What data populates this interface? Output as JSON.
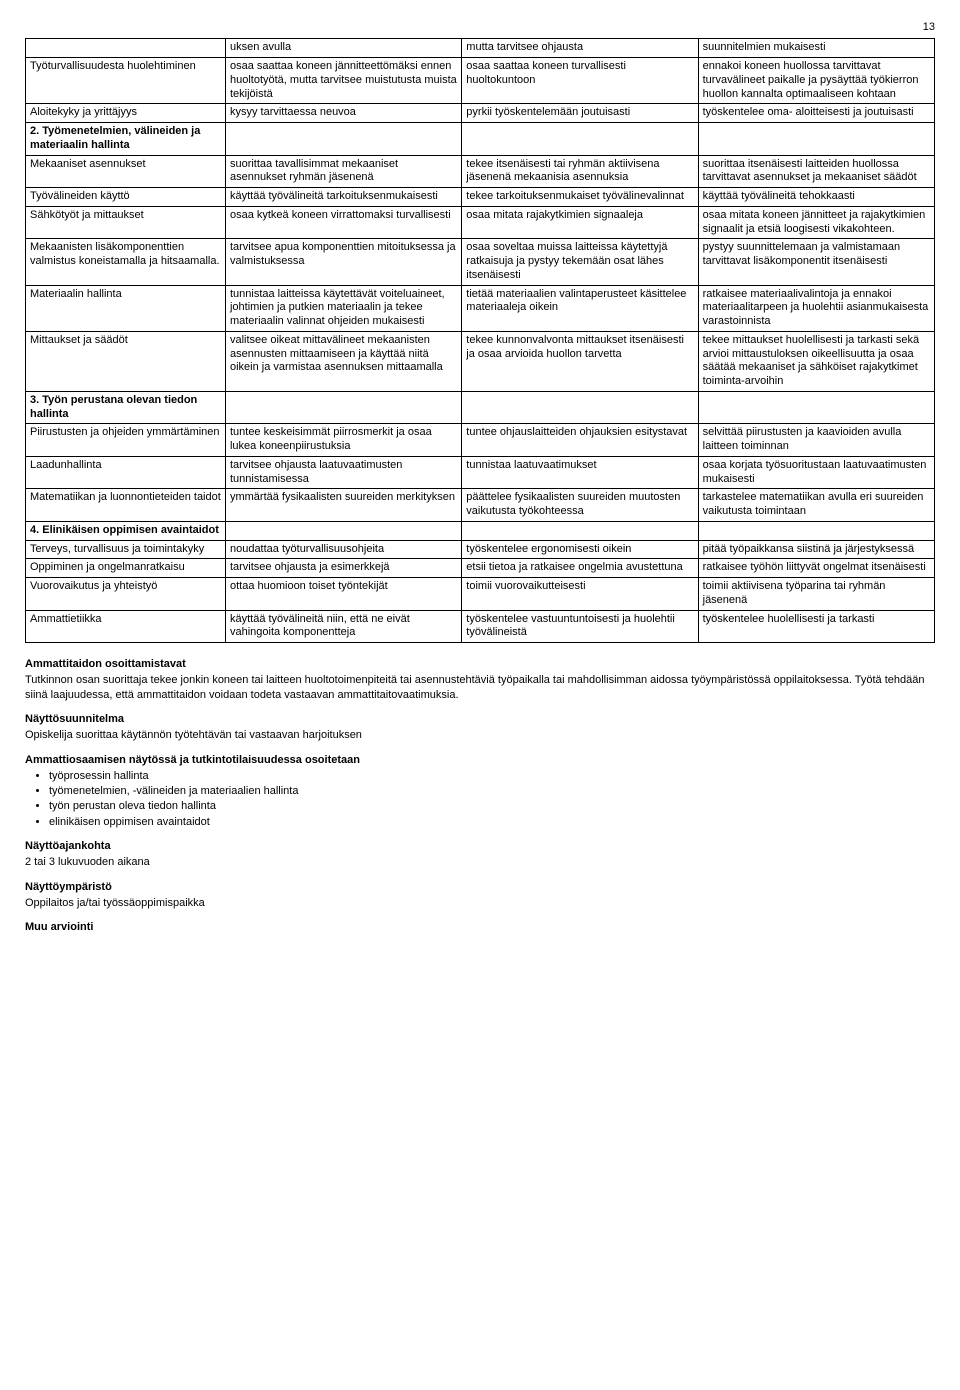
{
  "page_number": "13",
  "table": {
    "rows": [
      {
        "c1": "",
        "c2": "uksen avulla",
        "c3": "mutta tarvitsee ohjausta",
        "c4": "suunnitelmien mukaisesti"
      },
      {
        "c1": "Työturvallisuudesta huolehtiminen",
        "c2": "osaa saattaa koneen jännitteettömäksi ennen huoltotyötä, mutta tarvitsee muistutusta muista tekijöistä",
        "c3": "osaa saattaa koneen turvallisesti huoltokuntoon",
        "c4": "ennakoi koneen huollossa tarvittavat turvavälineet paikalle ja pysäyttää työkierron huollon kannalta optimaaliseen kohtaan"
      },
      {
        "c1": "Aloitekyky ja yrittäjyys",
        "c2": "kysyy tarvittaessa neuvoa",
        "c3": "pyrkii työskentelemään joutuisasti",
        "c4": "työskentelee oma- aloitteisesti ja joutuisasti"
      },
      {
        "section": true,
        "c1": "2. Työmenetelmien, välineiden ja materiaalin hallinta",
        "c2": "",
        "c3": "",
        "c4": ""
      },
      {
        "c1": "Mekaaniset asennukset",
        "c2": "suorittaa tavallisimmat mekaaniset asennukset ryhmän jäsenenä",
        "c3": "tekee itsenäisesti tai ryhmän aktiivisena jäsenenä mekaanisia asennuksia",
        "c4": "suorittaa itsenäisesti laitteiden huollossa tarvittavat asennukset ja mekaaniset säädöt"
      },
      {
        "c1": "Työvälineiden käyttö",
        "c2": "käyttää työvälineitä tarkoituksenmukaisesti",
        "c3": "tekee tarkoituksenmukaiset työvälinevalinnat",
        "c4": "käyttää työvälineitä tehokkaasti"
      },
      {
        "c1": "Sähkötyöt ja mittaukset",
        "c2": "osaa kytkeä koneen virrattomaksi turvallisesti",
        "c3": "osaa mitata rajakytkimien signaaleja",
        "c4": "osaa mitata koneen jännitteet ja rajakytkimien signaalit ja etsiä loogisesti vikakohteen."
      },
      {
        "c1": "Mekaanisten lisäkomponenttien valmistus koneistamalla ja hitsaamalla.",
        "c2": "tarvitsee apua komponenttien mitoituksessa ja valmistuksessa",
        "c3": "osaa soveltaa muissa laitteissa käytettyjä ratkaisuja ja pystyy tekemään osat lähes itsenäisesti",
        "c4": "pystyy suunnittelemaan ja valmistamaan tarvittavat lisäkomponentit itsenäisesti"
      },
      {
        "c1": "Materiaalin hallinta",
        "c2": "tunnistaa laitteissa käytettävät voiteluaineet, johtimien ja putkien materiaalin ja tekee materiaalin valinnat ohjeiden mukaisesti",
        "c3": "tietää materiaalien valintaperusteet käsittelee materiaaleja oikein",
        "c4": "ratkaisee materiaalivalintoja ja ennakoi materiaalitarpeen ja huolehtii asianmukaisesta varastoinnista"
      },
      {
        "c1": "Mittaukset ja säädöt",
        "c2": "valitsee oikeat mittavälineet mekaanisten asennusten mittaamiseen ja käyttää niitä oikein ja varmistaa asennuksen mittaamalla",
        "c3": "tekee kunnonvalvonta mittaukset itsenäisesti ja osaa arvioida huollon tarvetta",
        "c4": "tekee mittaukset huolellisesti ja tarkasti sekä arvioi mittaustuloksen oikeellisuutta ja osaa säätää mekaaniset ja sähköiset rajakytkimet toiminta-arvoihin"
      },
      {
        "section": true,
        "c1": "3. Työn perustana olevan tiedon hallinta",
        "c2": "",
        "c3": "",
        "c4": ""
      },
      {
        "c1": "Piirustusten ja ohjeiden ymmärtäminen",
        "c2": "tuntee keskeisimmät piirrosmerkit ja osaa lukea koneenpiirustuksia",
        "c3": "tuntee ohjauslaitteiden ohjauksien esitystavat",
        "c4": "selvittää piirustusten ja kaavioiden avulla laitteen toiminnan"
      },
      {
        "c1": "Laadunhallinta",
        "c2": "tarvitsee ohjausta laatuvaatimusten tunnistamisessa",
        "c3": "tunnistaa laatuvaatimukset",
        "c4": "osaa korjata työsuoritustaan laatuvaatimusten mukaisesti"
      },
      {
        "c1": "Matematiikan ja luonnontieteiden taidot",
        "c2": "ymmärtää fysikaalisten suureiden merkityksen",
        "c3": "päättelee fysikaalisten suureiden muutosten vaikutusta työkohteessa",
        "c4": "tarkastelee matematiikan avulla eri suureiden vaikutusta toimintaan"
      },
      {
        "section": true,
        "c1": "4. Elinikäisen oppimisen avaintaidot",
        "c2": "",
        "c3": "",
        "c4": ""
      },
      {
        "c1": "Terveys, turvallisuus ja toimintakyky",
        "c2": "noudattaa työturvallisuusohjeita",
        "c3": "työskentelee ergonomisesti oikein",
        "c4": "pitää työpaikkansa siistinä ja järjestyksessä"
      },
      {
        "c1": "Oppiminen ja ongelmanratkaisu",
        "c2": "tarvitsee ohjausta ja esimerkkejä",
        "c3": "etsii tietoa ja ratkaisee ongelmia avustettuna",
        "c4": "ratkaisee työhön liittyvät ongelmat itsenäisesti"
      },
      {
        "c1": "Vuorovaikutus ja yhteistyö",
        "c2": "ottaa huomioon toiset työntekijät",
        "c3": "toimii vuorovaikutteisesti",
        "c4": "toimii aktiivisena työparina tai ryhmän jäsenenä"
      },
      {
        "c1": "Ammattietiikka",
        "c2": "käyttää työvälineitä niin, että ne eivät vahingoita komponentteja",
        "c3": "työskentelee vastuuntuntoisesti ja huolehtii työvälineistä",
        "c4": "työskentelee huolellisesti ja tarkasti"
      }
    ]
  },
  "sections": {
    "s1_title": "Ammattitaidon osoittamistavat",
    "s1_body": "Tutkinnon osan suorittaja tekee jonkin koneen tai laitteen huoltotoimenpiteitä tai asennustehtäviä työpaikalla tai mahdollisimman aidossa työympäristössä oppilaitoksessa. Työtä tehdään siinä laajuudessa, että ammattitaidon voidaan todeta vastaavan ammattitaitovaatimuksia.",
    "s2_title": "Näyttösuunnitelma",
    "s2_body": "Opiskelija suorittaa käytännön työtehtävän tai vastaavan harjoituksen",
    "s3_title": "Ammattiosaamisen näytössä ja tutkintotilaisuudessa osoitetaan",
    "bullets": [
      "työprosessin hallinta",
      "työmenetelmien, -välineiden ja materiaalien hallinta",
      "työn perustan oleva tiedon hallinta",
      "elinikäisen oppimisen avaintaidot"
    ],
    "s4_title": "Näyttöajankohta",
    "s4_body": "2 tai 3 lukuvuoden aikana",
    "s5_title": "Näyttöympäristö",
    "s5_body": "Oppilaitos ja/tai työssäoppimispaikka",
    "s6_title": "Muu arviointi"
  }
}
